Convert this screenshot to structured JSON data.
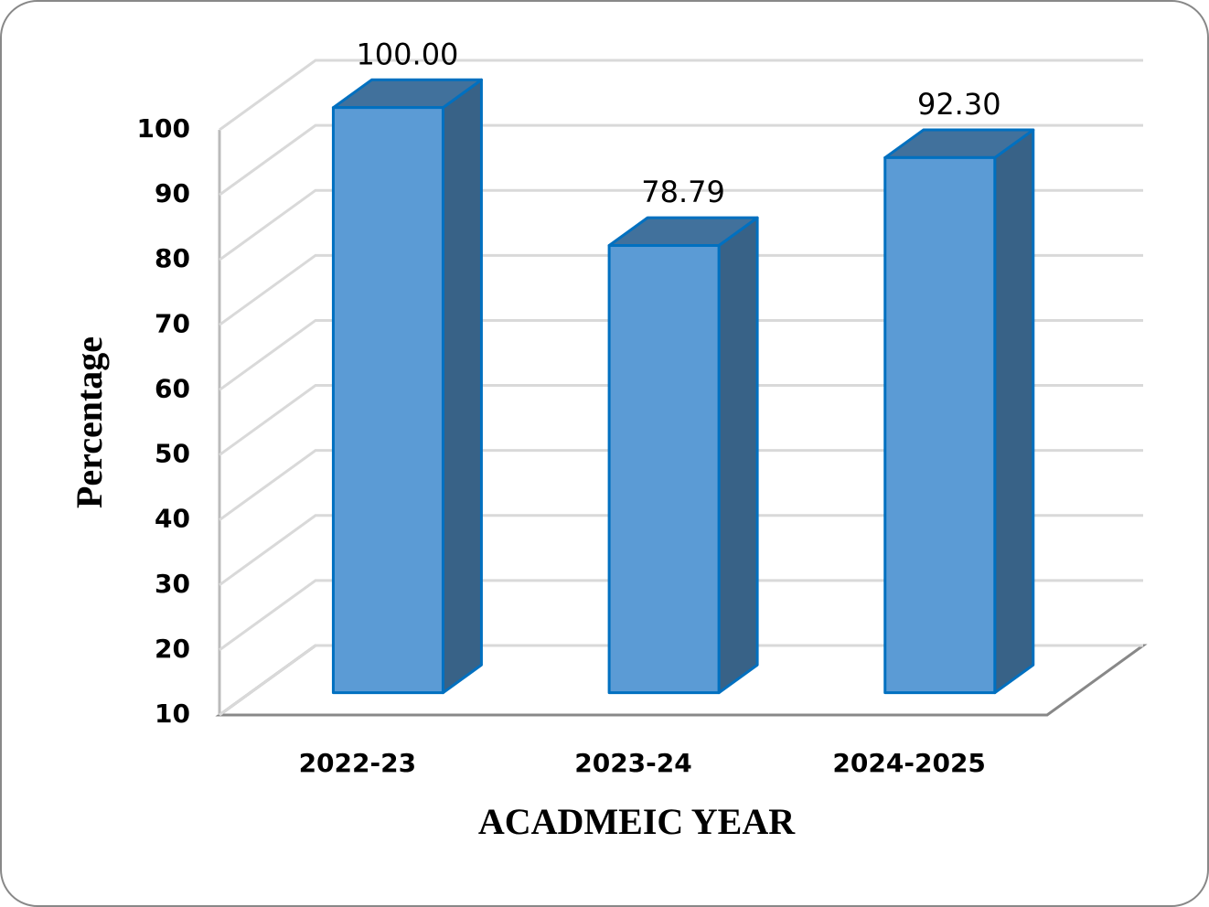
{
  "chart_data": {
    "type": "bar3d",
    "x_label": "ACADMEIC YEAR",
    "y_label": "Percentage",
    "categories": [
      "2022-23",
      "2023-24",
      "2024-2025"
    ],
    "values": [
      100,
      78.79,
      92.3
    ],
    "value_labels": [
      "100.00",
      "78.79",
      "92.30"
    ],
    "color": "#5b9bd5",
    "side_color": "#386287",
    "top_color": "#41719c",
    "ylim": [
      10,
      100
    ],
    "yticks": [
      10,
      20,
      30,
      40,
      50,
      60,
      70,
      80,
      90,
      100
    ],
    "grid": true
  }
}
